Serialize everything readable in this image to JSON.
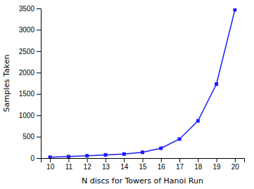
{
  "chart_data": {
    "type": "line",
    "x": [
      10,
      11,
      12,
      13,
      14,
      15,
      16,
      17,
      18,
      19,
      20
    ],
    "values": [
      20,
      35,
      55,
      75,
      95,
      135,
      230,
      445,
      870,
      1730,
      3470
    ],
    "color": "#1a1aff",
    "marker": "square",
    "xlabel": "N discs for Towers of Hanoi Run",
    "ylabel": "Samples Taken",
    "xlim": [
      9.5,
      20.5
    ],
    "ylim": [
      0,
      3500
    ],
    "xticks": [
      10,
      11,
      12,
      13,
      14,
      15,
      16,
      17,
      18,
      19,
      20
    ],
    "yticks": [
      0,
      500,
      1000,
      1500,
      2000,
      2500,
      3000,
      3500
    ],
    "grid": false
  }
}
